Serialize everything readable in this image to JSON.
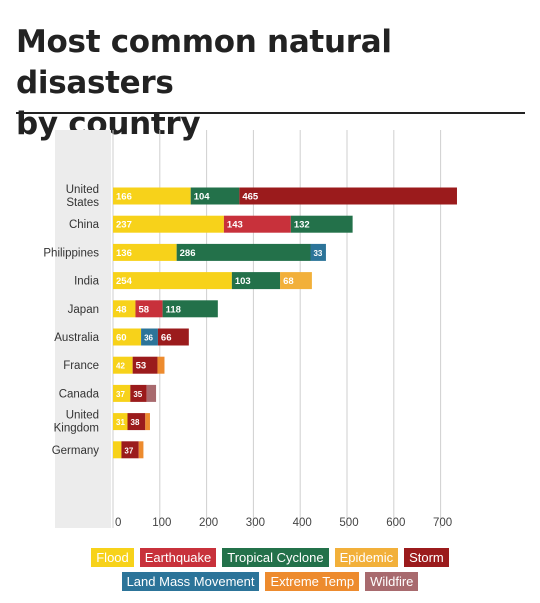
{
  "header": {
    "title_line1": "Most common natural disasters",
    "title_line2": "by country"
  },
  "colors": {
    "Flood": "#f7d21a",
    "Earthquake": "#c8313b",
    "Tropical Cyclone": "#23714a",
    "Epidemic": "#f2b03a",
    "Storm": "#9b1b1c",
    "Land Mass Movement": "#2c7499",
    "Extreme Temp": "#ed8b2e",
    "Wildfire": "#a86a6e"
  },
  "chart_data": {
    "type": "bar",
    "orientation": "horizontal",
    "stacked": true,
    "title": "Most common natural disasters by country",
    "xlim": [
      0,
      750
    ],
    "xticks": [
      0,
      100,
      200,
      300,
      400,
      500,
      600,
      700
    ],
    "grid": true,
    "legend_position": "bottom",
    "categories": [
      "United States",
      "China",
      "Philippines",
      "India",
      "Japan",
      "Australia",
      "France",
      "Canada",
      "United Kingdom",
      "Germany"
    ],
    "category_labels": [
      [
        "United",
        "States"
      ],
      [
        "China"
      ],
      [
        "Philippines"
      ],
      [
        "India"
      ],
      [
        "Japan"
      ],
      [
        "Australia"
      ],
      [
        "France"
      ],
      [
        "Canada"
      ],
      [
        "United",
        "Kingdom"
      ],
      [
        "Germany"
      ]
    ],
    "legend_rows": [
      [
        "Flood",
        "Earthquake",
        "Tropical Cyclone",
        "Epidemic",
        "Storm"
      ],
      [
        "Land Mass Movement",
        "Extreme Temp",
        "Wildfire"
      ]
    ],
    "bars": [
      [
        {
          "type": "Flood",
          "value": 166
        },
        {
          "type": "Tropical Cyclone",
          "value": 104
        },
        {
          "type": "Storm",
          "value": 465
        }
      ],
      [
        {
          "type": "Flood",
          "value": 237
        },
        {
          "type": "Earthquake",
          "value": 143
        },
        {
          "type": "Tropical Cyclone",
          "value": 132
        }
      ],
      [
        {
          "type": "Flood",
          "value": 136
        },
        {
          "type": "Tropical Cyclone",
          "value": 286
        },
        {
          "type": "Land Mass Movement",
          "value": 33
        }
      ],
      [
        {
          "type": "Flood",
          "value": 254
        },
        {
          "type": "Tropical Cyclone",
          "value": 103
        },
        {
          "type": "Epidemic",
          "value": 68
        }
      ],
      [
        {
          "type": "Flood",
          "value": 48
        },
        {
          "type": "Earthquake",
          "value": 58
        },
        {
          "type": "Tropical Cyclone",
          "value": 118
        }
      ],
      [
        {
          "type": "Flood",
          "value": 60
        },
        {
          "type": "Land Mass Movement",
          "value": 36
        },
        {
          "type": "Storm",
          "value": 66
        }
      ],
      [
        {
          "type": "Flood",
          "value": 42
        },
        {
          "type": "Storm",
          "value": 53
        },
        {
          "type": "Extreme Temp",
          "value": 15
        }
      ],
      [
        {
          "type": "Flood",
          "value": 37
        },
        {
          "type": "Storm",
          "value": 35
        },
        {
          "type": "Wildfire",
          "value": 20
        }
      ],
      [
        {
          "type": "Flood",
          "value": 31
        },
        {
          "type": "Storm",
          "value": 38
        },
        {
          "type": "Extreme Temp",
          "value": 10
        }
      ],
      [
        {
          "type": "Flood",
          "value": 18
        },
        {
          "type": "Storm",
          "value": 37
        },
        {
          "type": "Extreme Temp",
          "value": 10
        }
      ]
    ]
  }
}
